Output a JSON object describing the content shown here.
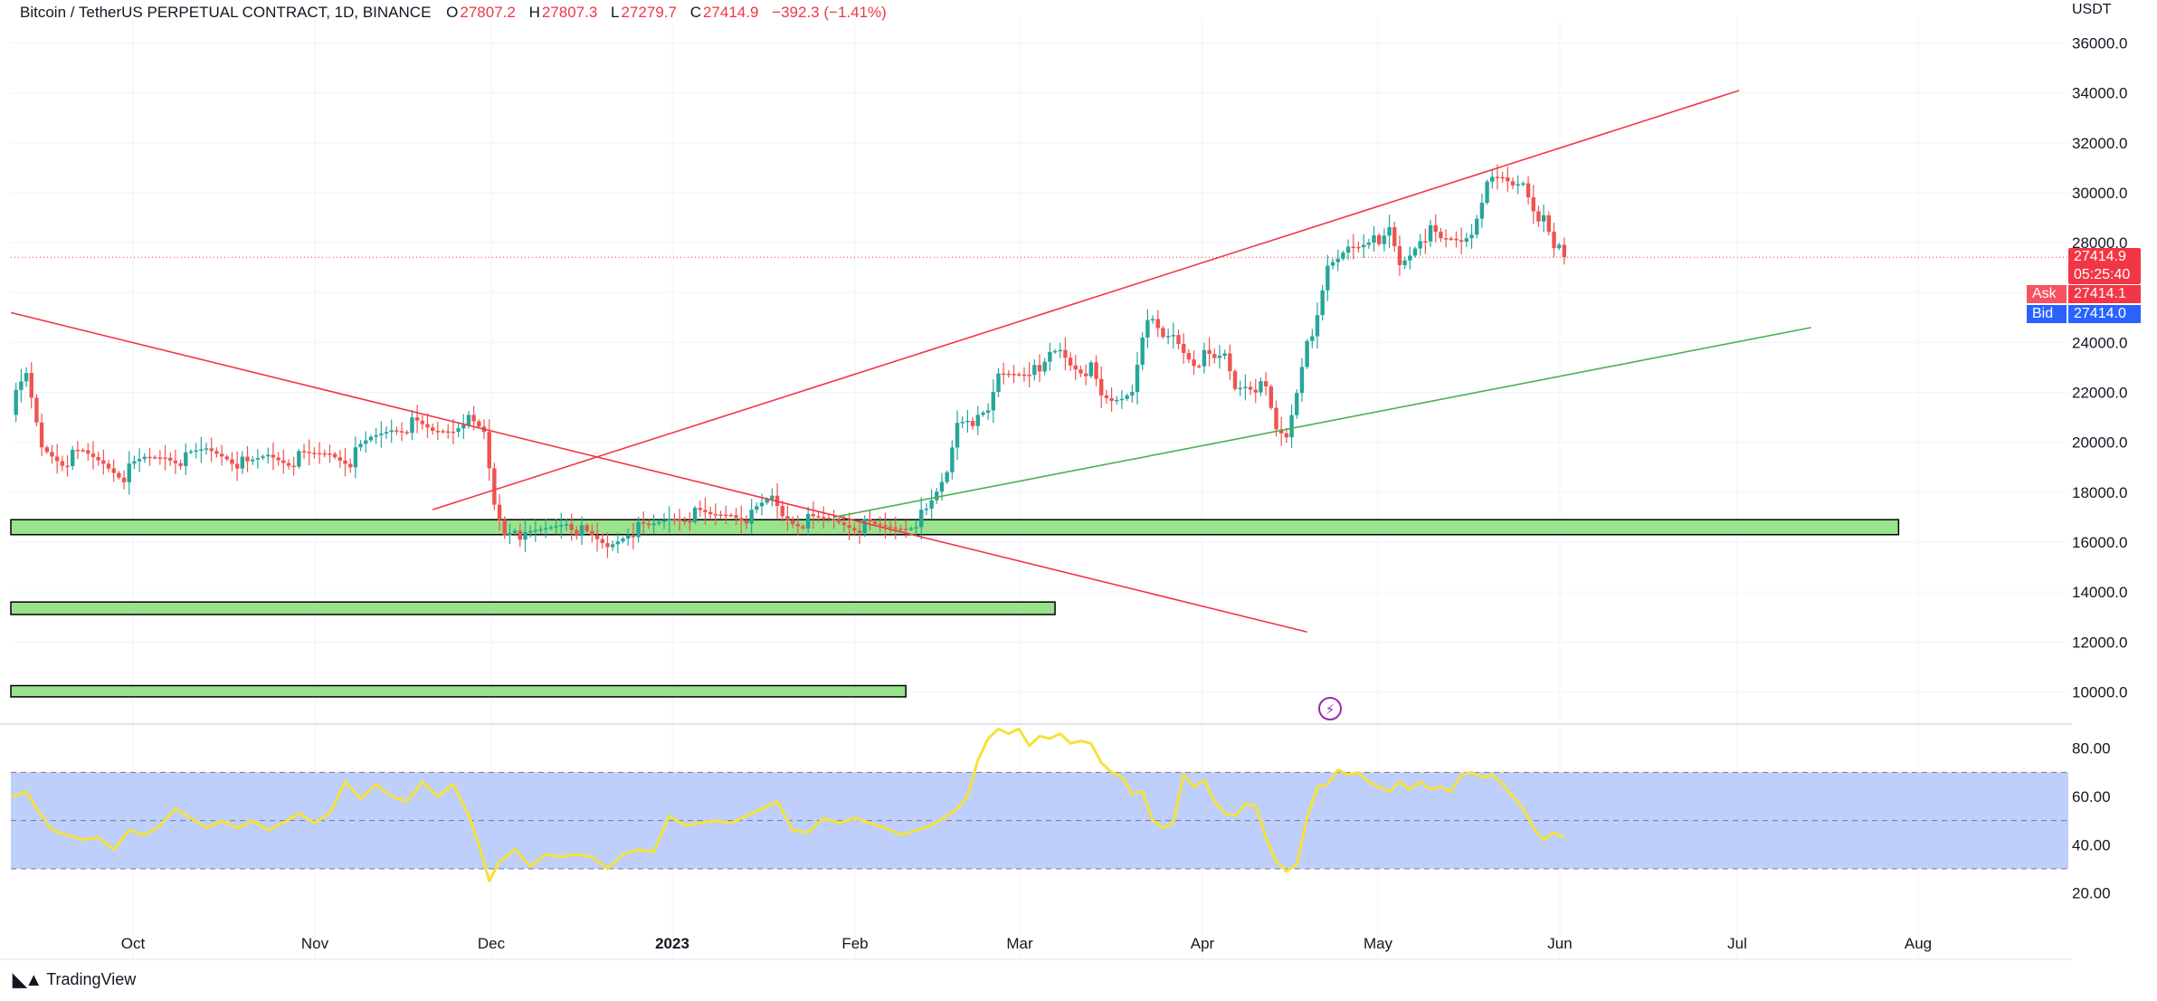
{
  "header": {
    "symbol": "Bitcoin / TetherUS PERPETUAL CONTRACT, 1D, BINANCE",
    "o_label": "O",
    "o_value": "27807.2",
    "h_label": "H",
    "h_value": "27807.3",
    "l_label": "L",
    "l_value": "27279.7",
    "c_label": "C",
    "c_value": "27414.9",
    "change": "−392.3 (−1.41%)"
  },
  "currency": "USDT",
  "brand": "TradingView",
  "price_tags": {
    "last": "27414.9",
    "countdown": "05:25:40",
    "ask_label": "Ask",
    "ask": "27414.1",
    "bid_label": "Bid",
    "bid": "27414.0"
  },
  "colors": {
    "up": "#26a69a",
    "down": "#ef5350",
    "trend_red": "#f23645",
    "trend_green": "#4caf50",
    "zone_fill": "#98e38c",
    "rsi_line": "#f5e23a",
    "rsi_band": "#b3c7fb",
    "bid_tag": "#2962ff",
    "ask_tag": "#f23645",
    "event_icon": "#9c27b0"
  },
  "chart_data": {
    "type": "candlestick",
    "y_ticks": [
      "36000.0",
      "34000.0",
      "32000.0",
      "30000.0",
      "28000.0",
      "26000.0",
      "24000.0",
      "22000.0",
      "20000.0",
      "18000.0",
      "16000.0",
      "14000.0",
      "12000.0",
      "10000.0"
    ],
    "ylim": [
      9000,
      37000
    ],
    "x_ticks": [
      "Oct",
      "Nov",
      "Dec",
      "2023",
      "Feb",
      "Mar",
      "Apr",
      "May",
      "Jun",
      "Jul",
      "Aug"
    ],
    "close_path": [
      [
        0,
        21400
      ],
      [
        3,
        22600
      ],
      [
        6,
        19800
      ],
      [
        10,
        19300
      ],
      [
        14,
        19500
      ],
      [
        18,
        19200
      ],
      [
        22,
        18700
      ],
      [
        26,
        19300
      ],
      [
        30,
        19500
      ],
      [
        34,
        19300
      ],
      [
        38,
        19700
      ],
      [
        42,
        19500
      ],
      [
        46,
        19000
      ],
      [
        50,
        19500
      ],
      [
        54,
        19300
      ],
      [
        58,
        19400
      ],
      [
        62,
        19600
      ],
      [
        66,
        19300
      ],
      [
        70,
        20100
      ],
      [
        74,
        20600
      ],
      [
        78,
        20700
      ],
      [
        82,
        20400
      ],
      [
        86,
        20600
      ],
      [
        88,
        21000
      ],
      [
        90,
        20600
      ],
      [
        92,
        20300
      ],
      [
        94,
        17500
      ],
      [
        96,
        16400
      ],
      [
        98,
        16700
      ],
      [
        100,
        16100
      ],
      [
        104,
        16500
      ],
      [
        108,
        16900
      ],
      [
        112,
        16200
      ],
      [
        116,
        15800
      ],
      [
        120,
        16500
      ],
      [
        124,
        16500
      ],
      [
        128,
        17000
      ],
      [
        132,
        17100
      ],
      [
        136,
        17000
      ],
      [
        140,
        17200
      ],
      [
        144,
        17000
      ],
      [
        148,
        17800
      ],
      [
        150,
        17100
      ],
      [
        152,
        16900
      ],
      [
        156,
        16800
      ],
      [
        160,
        16900
      ],
      [
        164,
        16700
      ],
      [
        168,
        16550
      ],
      [
        172,
        16600
      ],
      [
        174,
        16700
      ],
      [
        176,
        16900
      ],
      [
        178,
        17100
      ],
      [
        180,
        17900
      ],
      [
        182,
        18800
      ],
      [
        184,
        20900
      ],
      [
        186,
        21100
      ],
      [
        188,
        20800
      ],
      [
        190,
        21100
      ],
      [
        192,
        22700
      ],
      [
        194,
        22800
      ],
      [
        196,
        22900
      ],
      [
        198,
        23000
      ],
      [
        200,
        22600
      ],
      [
        202,
        23500
      ],
      [
        204,
        23700
      ],
      [
        206,
        23200
      ],
      [
        208,
        23000
      ],
      [
        210,
        22900
      ],
      [
        212,
        21700
      ],
      [
        214,
        21600
      ],
      [
        216,
        21800
      ],
      [
        218,
        22200
      ],
      [
        220,
        24500
      ],
      [
        222,
        24700
      ],
      [
        224,
        24100
      ],
      [
        226,
        24300
      ],
      [
        228,
        23700
      ],
      [
        230,
        23300
      ],
      [
        232,
        23400
      ],
      [
        234,
        23200
      ],
      [
        236,
        23500
      ],
      [
        238,
        22200
      ],
      [
        240,
        22400
      ],
      [
        242,
        22300
      ],
      [
        244,
        22000
      ],
      [
        246,
        20400
      ],
      [
        248,
        20200
      ],
      [
        250,
        22100
      ],
      [
        252,
        24300
      ],
      [
        254,
        24800
      ],
      [
        256,
        26900
      ],
      [
        258,
        27300
      ],
      [
        260,
        27900
      ],
      [
        262,
        28000
      ],
      [
        264,
        28300
      ],
      [
        266,
        27700
      ],
      [
        268,
        28500
      ],
      [
        270,
        27100
      ],
      [
        272,
        27600
      ],
      [
        274,
        28300
      ],
      [
        276,
        28400
      ],
      [
        278,
        28000
      ],
      [
        280,
        28100
      ],
      [
        282,
        28100
      ],
      [
        284,
        28500
      ],
      [
        286,
        29900
      ],
      [
        288,
        30400
      ],
      [
        290,
        30500
      ],
      [
        292,
        30300
      ],
      [
        294,
        30500
      ],
      [
        296,
        29500
      ],
      [
        298,
        28800
      ],
      [
        300,
        27600
      ],
      [
        301,
        27800
      ],
      [
        302,
        27415
      ]
    ],
    "rsi_path": [
      [
        0,
        60
      ],
      [
        3,
        62
      ],
      [
        5,
        55
      ],
      [
        8,
        46
      ],
      [
        11,
        44
      ],
      [
        14,
        42
      ],
      [
        17,
        43
      ],
      [
        20,
        38
      ],
      [
        23,
        46
      ],
      [
        26,
        44
      ],
      [
        29,
        48
      ],
      [
        32,
        55
      ],
      [
        35,
        51
      ],
      [
        38,
        47
      ],
      [
        41,
        50
      ],
      [
        44,
        47
      ],
      [
        47,
        50
      ],
      [
        50,
        46
      ],
      [
        53,
        49
      ],
      [
        56,
        53
      ],
      [
        59,
        49
      ],
      [
        62,
        53
      ],
      [
        65,
        66
      ],
      [
        68,
        59
      ],
      [
        71,
        65
      ],
      [
        74,
        60
      ],
      [
        77,
        58
      ],
      [
        80,
        66
      ],
      [
        83,
        60
      ],
      [
        86,
        65
      ],
      [
        89,
        52
      ],
      [
        91,
        40
      ],
      [
        93,
        25
      ],
      [
        95,
        33
      ],
      [
        98,
        38
      ],
      [
        101,
        31
      ],
      [
        104,
        36
      ],
      [
        107,
        35
      ],
      [
        110,
        36
      ],
      [
        113,
        35
      ],
      [
        116,
        30
      ],
      [
        119,
        36
      ],
      [
        122,
        38
      ],
      [
        125,
        37
      ],
      [
        128,
        52
      ],
      [
        131,
        48
      ],
      [
        134,
        49
      ],
      [
        137,
        50
      ],
      [
        140,
        49
      ],
      [
        143,
        52
      ],
      [
        146,
        55
      ],
      [
        149,
        58
      ],
      [
        152,
        46
      ],
      [
        155,
        45
      ],
      [
        158,
        51
      ],
      [
        161,
        49
      ],
      [
        164,
        51
      ],
      [
        167,
        49
      ],
      [
        170,
        47
      ],
      [
        173,
        44
      ],
      [
        176,
        46
      ],
      [
        179,
        48
      ],
      [
        182,
        52
      ],
      [
        184,
        55
      ],
      [
        186,
        60
      ],
      [
        188,
        75
      ],
      [
        190,
        84
      ],
      [
        192,
        88
      ],
      [
        194,
        86
      ],
      [
        196,
        88
      ],
      [
        198,
        81
      ],
      [
        200,
        85
      ],
      [
        202,
        84
      ],
      [
        204,
        86
      ],
      [
        206,
        82
      ],
      [
        208,
        83
      ],
      [
        210,
        82
      ],
      [
        212,
        74
      ],
      [
        214,
        70
      ],
      [
        216,
        68
      ],
      [
        218,
        61
      ],
      [
        220,
        62
      ],
      [
        222,
        50
      ],
      [
        224,
        47
      ],
      [
        226,
        49
      ],
      [
        228,
        69
      ],
      [
        230,
        64
      ],
      [
        232,
        67
      ],
      [
        234,
        58
      ],
      [
        236,
        53
      ],
      [
        238,
        52
      ],
      [
        240,
        57
      ],
      [
        242,
        56
      ],
      [
        244,
        43
      ],
      [
        246,
        33
      ],
      [
        248,
        29
      ],
      [
        250,
        32
      ],
      [
        252,
        51
      ],
      [
        254,
        64
      ],
      [
        256,
        65
      ],
      [
        258,
        71
      ],
      [
        260,
        69
      ],
      [
        262,
        70
      ],
      [
        264,
        66
      ],
      [
        266,
        64
      ],
      [
        268,
        62
      ],
      [
        270,
        66
      ],
      [
        272,
        63
      ],
      [
        274,
        66
      ],
      [
        276,
        63
      ],
      [
        278,
        64
      ],
      [
        280,
        62
      ],
      [
        282,
        69
      ],
      [
        284,
        70
      ],
      [
        286,
        68
      ],
      [
        288,
        69
      ],
      [
        290,
        65
      ],
      [
        292,
        60
      ],
      [
        294,
        55
      ],
      [
        296,
        47
      ],
      [
        298,
        42
      ],
      [
        300,
        45
      ],
      [
        302,
        43
      ]
    ],
    "rsi": {
      "ylim": [
        15,
        90
      ],
      "y_ticks": [
        "80.00",
        "60.00",
        "40.00",
        "20.00"
      ],
      "band": [
        30,
        70
      ],
      "mid": 50
    },
    "trendlines": [
      {
        "color": "red",
        "from": [
          0,
          25200
        ],
        "to": [
          252,
          12400
        ]
      },
      {
        "color": "red",
        "from": [
          82,
          17300
        ],
        "to": [
          336,
          34100
        ]
      },
      {
        "color": "green",
        "from": [
          160,
          17000
        ],
        "to": [
          350,
          24600
        ]
      }
    ],
    "zones": [
      {
        "y1": 16300,
        "y2": 16900,
        "x_end": 367
      },
      {
        "y1": 13100,
        "y2": 13600,
        "x_end": 203
      },
      {
        "y1": 9800,
        "y2": 10250,
        "x_end": 174
      }
    ],
    "last_price": 27414.9
  }
}
